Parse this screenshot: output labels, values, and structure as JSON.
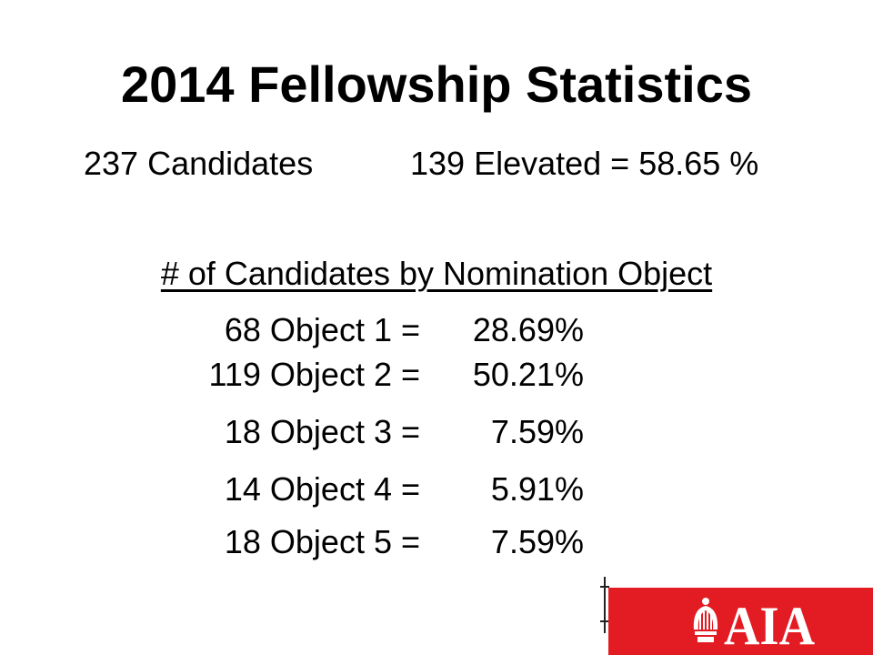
{
  "slide": {
    "title": "2014 Fellowship Statistics",
    "summary": {
      "candidates": "237 Candidates",
      "elevated": "139 Elevated = 58.65 %"
    },
    "subheading": "# of Candidates by Nomination Object",
    "rows": [
      {
        "label": "68 Object 1 =",
        "pct": "28.69%"
      },
      {
        "label": "119 Object 2 =",
        "pct": "50.21%"
      },
      {
        "label": "18 Object 3 =",
        "pct": "7.59%"
      },
      {
        "label": "14 Object 4 =",
        "pct": "5.91%"
      },
      {
        "label": "18 Object 5 =",
        "pct": "7.59%"
      }
    ]
  },
  "footer": {
    "logo_text": "AIA",
    "logo_icon": "eagle-emblem-icon",
    "bar_color": "#e31b23"
  }
}
